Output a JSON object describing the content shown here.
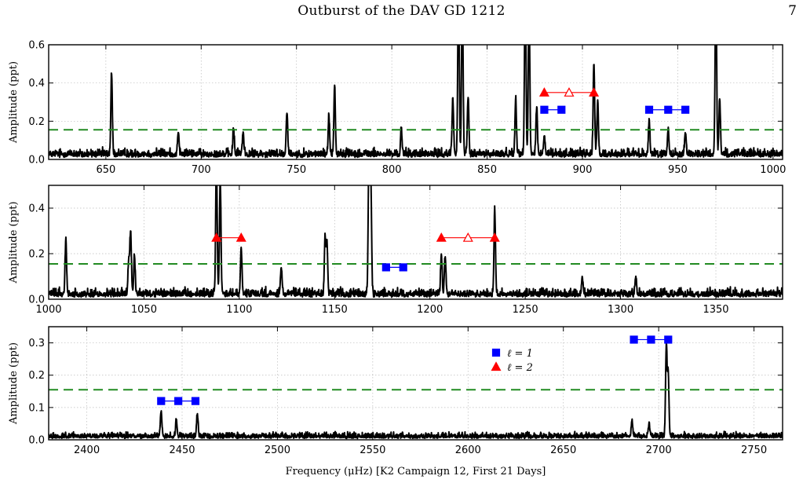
{
  "page": {
    "header_title": "Outburst of the DAV GD 1212",
    "page_number": "7"
  },
  "colors": {
    "spectrum": "#000000",
    "threshold": "#228b22",
    "l1": "#0000ff",
    "l2": "#ff0000",
    "grid": "#bbbbbb"
  },
  "chart_data": [
    {
      "type": "line",
      "ylabel": "Amplitude (ppt)",
      "xlim": [
        620,
        1005
      ],
      "ylim": [
        0,
        0.6
      ],
      "xticks": [
        650,
        700,
        750,
        800,
        850,
        900,
        950,
        1000
      ],
      "yticks": [
        0.0,
        0.2,
        0.4,
        0.6
      ],
      "threshold": 0.155,
      "noise": 0.03,
      "peaks": [
        [
          653,
          0.42
        ],
        [
          688,
          0.12
        ],
        [
          717,
          0.13
        ],
        [
          722,
          0.12
        ],
        [
          745,
          0.23
        ],
        [
          767,
          0.2
        ],
        [
          770,
          0.36
        ],
        [
          805,
          0.13
        ],
        [
          832,
          0.3
        ],
        [
          835,
          0.9
        ],
        [
          837,
          0.85
        ],
        [
          840,
          0.3
        ],
        [
          865,
          0.3
        ],
        [
          870,
          0.9
        ],
        [
          872,
          0.8
        ],
        [
          876,
          0.25
        ],
        [
          880,
          0.1
        ],
        [
          906,
          0.48
        ],
        [
          908,
          0.28
        ],
        [
          935,
          0.18
        ],
        [
          945,
          0.14
        ],
        [
          954,
          0.12
        ],
        [
          970,
          0.9
        ],
        [
          972,
          0.3
        ]
      ],
      "markers": [
        {
          "mode": "l2",
          "y": 0.35,
          "x": [
            880,
            893,
            906
          ],
          "open": [
            1
          ]
        },
        {
          "mode": "l1",
          "y": 0.26,
          "x": [
            880,
            889
          ],
          "open": []
        },
        {
          "mode": "l1",
          "y": 0.26,
          "x": [
            935,
            945,
            954
          ],
          "open": []
        }
      ]
    },
    {
      "type": "line",
      "ylabel": "Amplitude (ppt)",
      "xlim": [
        1000,
        1385
      ],
      "ylim": [
        0,
        0.5
      ],
      "xticks": [
        1000,
        1050,
        1100,
        1150,
        1200,
        1250,
        1300,
        1350
      ],
      "yticks": [
        0.0,
        0.2,
        0.4
      ],
      "threshold": 0.155,
      "noise": 0.025,
      "peaks": [
        [
          1009,
          0.24
        ],
        [
          1042,
          0.15
        ],
        [
          1043,
          0.28
        ],
        [
          1045,
          0.17
        ],
        [
          1088,
          0.6
        ],
        [
          1090,
          0.5
        ],
        [
          1101,
          0.2
        ],
        [
          1122,
          0.12
        ],
        [
          1145,
          0.25
        ],
        [
          1146,
          0.22
        ],
        [
          1168,
          0.6
        ],
        [
          1169,
          0.5
        ],
        [
          1206,
          0.18
        ],
        [
          1208,
          0.17
        ],
        [
          1234,
          0.37
        ],
        [
          1280,
          0.07
        ],
        [
          1308,
          0.08
        ]
      ],
      "markers": [
        {
          "mode": "l2",
          "y": 0.27,
          "x": [
            1088,
            1101
          ],
          "open": []
        },
        {
          "mode": "l2",
          "y": 0.27,
          "x": [
            1206,
            1220,
            1234
          ],
          "open": [
            1
          ]
        },
        {
          "mode": "l1",
          "y": 0.14,
          "x": [
            1177,
            1186
          ],
          "open": []
        }
      ]
    },
    {
      "type": "line",
      "ylabel": "Amplitude (ppt)",
      "xlabel": "Frequency (μHz) [K2 Campaign 12, First 21 Days]",
      "xlim": [
        2380,
        2765
      ],
      "ylim": [
        0,
        0.35
      ],
      "xticks": [
        2400,
        2450,
        2500,
        2550,
        2600,
        2650,
        2700,
        2750
      ],
      "yticks": [
        0.0,
        0.1,
        0.2,
        0.3
      ],
      "threshold": 0.155,
      "noise": 0.012,
      "peaks": [
        [
          2439,
          0.08
        ],
        [
          2447,
          0.05
        ],
        [
          2458,
          0.07
        ],
        [
          2686,
          0.05
        ],
        [
          2695,
          0.04
        ],
        [
          2704,
          0.28
        ],
        [
          2705,
          0.2
        ]
      ],
      "markers": [
        {
          "mode": "l1",
          "y": 0.12,
          "x": [
            2439,
            2448,
            2457
          ],
          "open": []
        },
        {
          "mode": "l1",
          "y": 0.31,
          "x": [
            2687,
            2696,
            2705
          ],
          "open": []
        }
      ],
      "legend": {
        "position": "upper-center",
        "entries": [
          {
            "mode": "l1",
            "label": "ℓ = 1"
          },
          {
            "mode": "l2",
            "label": "ℓ = 2"
          }
        ]
      }
    }
  ]
}
